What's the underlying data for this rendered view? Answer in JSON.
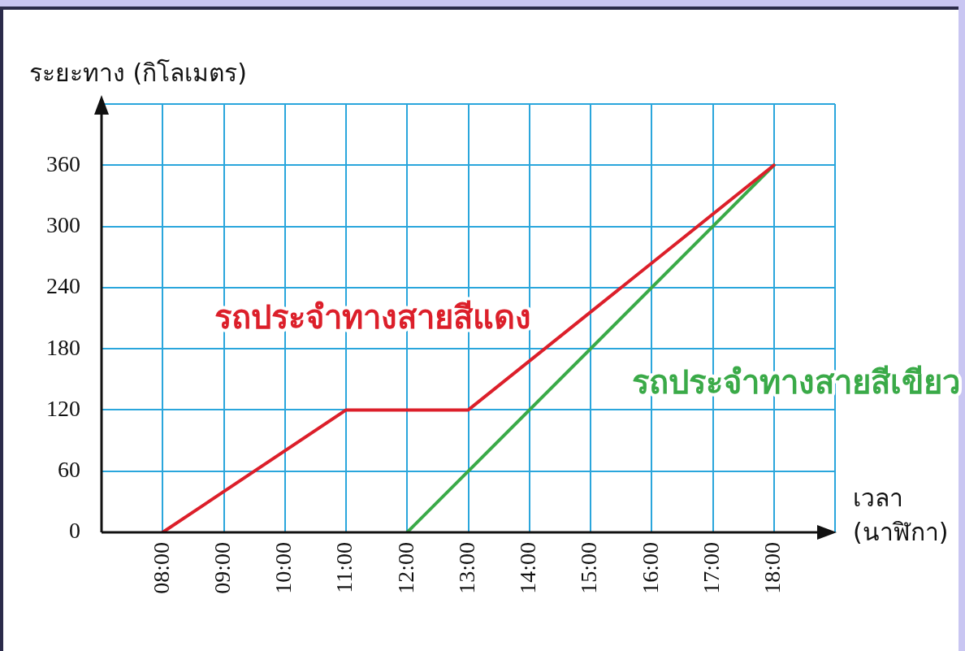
{
  "chart_data": {
    "type": "line",
    "xlabel": "เวลา (นาฬิกา)",
    "ylabel": "ระยะทาง (กิโลเมตร)",
    "series": [
      {
        "name": "รถประจำทางสายสีแดง",
        "color": "#dc1f2a",
        "x": [
          8,
          11,
          13,
          18
        ],
        "values": [
          0,
          120,
          120,
          360
        ]
      },
      {
        "name": "รถประจำทางสายสีเขียว",
        "color": "#3aaa48",
        "x": [
          12,
          18
        ],
        "values": [
          0,
          360
        ]
      }
    ],
    "xlim": [
      7,
      19
    ],
    "xticks": [
      {
        "value": 8,
        "label": "08:00"
      },
      {
        "value": 9,
        "label": "09:00"
      },
      {
        "value": 10,
        "label": "10:00"
      },
      {
        "value": 11,
        "label": "11:00"
      },
      {
        "value": 12,
        "label": "12:00"
      },
      {
        "value": 13,
        "label": "13:00"
      },
      {
        "value": 14,
        "label": "14:00"
      },
      {
        "value": 15,
        "label": "15:00"
      },
      {
        "value": 16,
        "label": "16:00"
      },
      {
        "value": 17,
        "label": "17:00"
      },
      {
        "value": 18,
        "label": "18:00"
      },
      {
        "value": 19,
        "label": null
      }
    ],
    "ylim": [
      0,
      420
    ],
    "yticks": [
      0,
      60,
      120,
      180,
      240,
      300,
      360,
      {
        "value": 420,
        "label": null
      }
    ],
    "grid": true,
    "legend": false
  }
}
